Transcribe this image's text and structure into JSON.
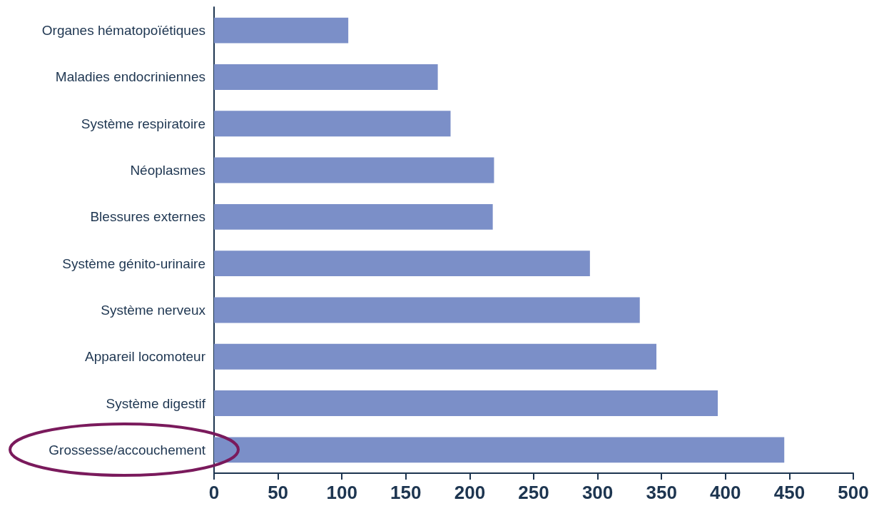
{
  "chart_data": {
    "type": "bar",
    "orientation": "horizontal",
    "categories": [
      "Organes hématopoïétiques",
      "Maladies endocriniennes",
      "Système respiratoire",
      "Néoplasmes",
      "Blessures externes",
      "Système génito-urinaire",
      "Système nerveux",
      "Appareil locomoteur",
      "Système digestif",
      "Grossesse/accouchement"
    ],
    "values": [
      105,
      175,
      185,
      219,
      218,
      294,
      333,
      346,
      394,
      446
    ],
    "color": "#7b8fc8",
    "xlim": [
      0,
      500
    ],
    "xticks": [
      0,
      50,
      100,
      150,
      200,
      250,
      300,
      350,
      400,
      450,
      500
    ]
  }
}
